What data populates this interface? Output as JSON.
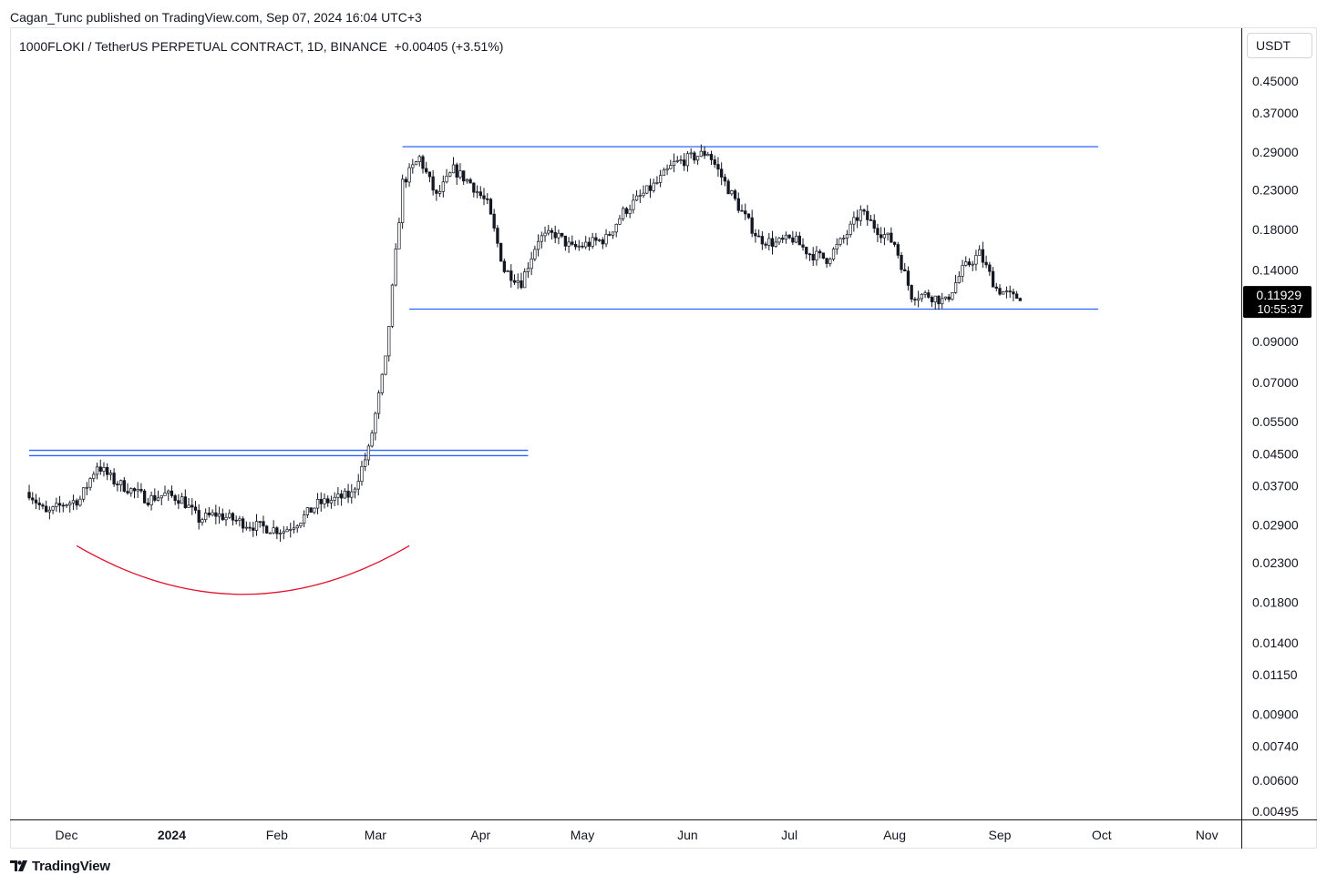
{
  "header": {
    "published": "Cagan_Tunc published on TradingView.com, Sep 07, 2024 16:04 UTC+3"
  },
  "symbol": {
    "description": "1000FLOKI / TetherUS PERPETUAL CONTRACT, 1D, BINANCE",
    "change": "+0.00405 (+3.51%)"
  },
  "currency": "USDT",
  "last_price": {
    "value": "0.11929",
    "countdown": "10:55:37"
  },
  "footer": {
    "brand": "TradingView"
  },
  "colors": {
    "candle": "#131722",
    "level_line": "#2962ff",
    "curve": "#e3102c",
    "price_label_bg": "#000000"
  },
  "icons": {
    "brand_logo": "tradingview-logo-icon"
  },
  "chart_data": {
    "type": "line",
    "chart_style": "candlestick",
    "scale": "log",
    "y_axis_position": "right",
    "grid": false,
    "x_tick_labels": [
      "Dec",
      "2024",
      "Feb",
      "Mar",
      "Apr",
      "May",
      "Jun",
      "Jul",
      "Aug",
      "Sep",
      "Oct",
      "Nov"
    ],
    "y_tick_labels": [
      "0.45000",
      "0.37000",
      "0.29000",
      "0.23000",
      "0.18000",
      "0.14000",
      "0.09000",
      "0.07000",
      "0.05500",
      "0.04500",
      "0.03700",
      "0.02900",
      "0.02300",
      "0.01800",
      "0.01400",
      "0.01150",
      "0.00900",
      "0.00740",
      "0.00600",
      "0.00495"
    ],
    "x": [
      "2023-11-20",
      "2023-11-25",
      "2023-11-30",
      "2023-12-05",
      "2023-12-10",
      "2023-12-15",
      "2023-12-20",
      "2023-12-25",
      "2023-12-30",
      "2024-01-04",
      "2024-01-09",
      "2024-01-14",
      "2024-01-19",
      "2024-01-24",
      "2024-01-29",
      "2024-02-03",
      "2024-02-08",
      "2024-02-13",
      "2024-02-18",
      "2024-02-23",
      "2024-02-28",
      "2024-03-04",
      "2024-03-09",
      "2024-03-14",
      "2024-03-19",
      "2024-03-24",
      "2024-03-29",
      "2024-04-03",
      "2024-04-08",
      "2024-04-13",
      "2024-04-18",
      "2024-04-23",
      "2024-04-28",
      "2024-05-03",
      "2024-05-08",
      "2024-05-13",
      "2024-05-18",
      "2024-05-23",
      "2024-05-28",
      "2024-06-02",
      "2024-06-07",
      "2024-06-12",
      "2024-06-17",
      "2024-06-22",
      "2024-06-27",
      "2024-07-02",
      "2024-07-07",
      "2024-07-12",
      "2024-07-17",
      "2024-07-22",
      "2024-07-27",
      "2024-08-01",
      "2024-08-06",
      "2024-08-11",
      "2024-08-16",
      "2024-08-21",
      "2024-08-26",
      "2024-08-31",
      "2024-09-05",
      "2024-09-07"
    ],
    "series": [
      {
        "values": [
          0.0355,
          0.031,
          0.033,
          0.034,
          0.042,
          0.038,
          0.036,
          0.034,
          0.035,
          0.034,
          0.03,
          0.031,
          0.03,
          0.029,
          0.0285,
          0.028,
          0.03,
          0.033,
          0.034,
          0.035,
          0.046,
          0.08,
          0.24,
          0.28,
          0.22,
          0.26,
          0.24,
          0.21,
          0.14,
          0.13,
          0.17,
          0.175,
          0.16,
          0.165,
          0.17,
          0.2,
          0.22,
          0.24,
          0.27,
          0.28,
          0.29,
          0.24,
          0.2,
          0.17,
          0.165,
          0.17,
          0.155,
          0.15,
          0.17,
          0.2,
          0.18,
          0.165,
          0.12,
          0.12,
          0.115,
          0.14,
          0.155,
          0.125,
          0.118,
          0.11929
        ]
      }
    ],
    "annotations": {
      "horizontal_levels": [
        {
          "price": 0.3,
          "from": "2024-03-09",
          "to": "2024-09-30"
        },
        {
          "price": 0.11,
          "from": "2024-03-11",
          "to": "2024-09-30"
        },
        {
          "price": 0.046,
          "from": "2023-11-20",
          "to": "2024-04-15"
        },
        {
          "price": 0.0445,
          "from": "2023-11-20",
          "to": "2024-04-15"
        }
      ],
      "rounded_bottom_arc": {
        "from": "2023-12-04",
        "to": "2024-03-11",
        "color": "#e3102c"
      }
    }
  }
}
